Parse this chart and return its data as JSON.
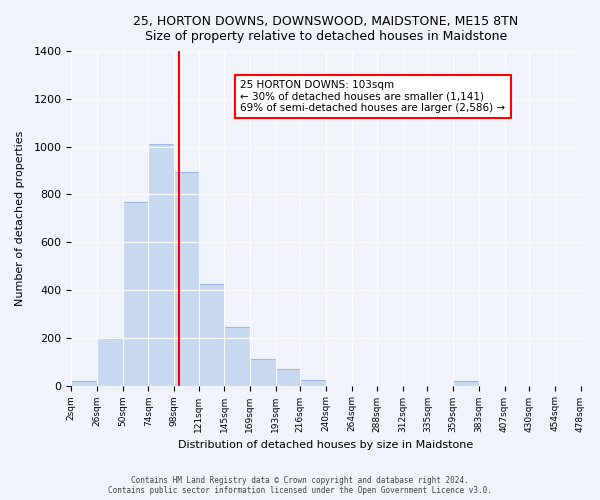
{
  "title": "25, HORTON DOWNS, DOWNSWOOD, MAIDSTONE, ME15 8TN",
  "subtitle": "Size of property relative to detached houses in Maidstone",
  "xlabel": "Distribution of detached houses by size in Maidstone",
  "ylabel": "Number of detached properties",
  "bar_color": "#c8d8f0",
  "bar_edge_color": "#a0b8e0",
  "vline_x": 103,
  "vline_color": "red",
  "annotation_title": "25 HORTON DOWNS: 103sqm",
  "annotation_line1": "← 30% of detached houses are smaller (1,141)",
  "annotation_line2": "69% of semi-detached houses are larger (2,586) →",
  "annotation_box_color": "white",
  "annotation_box_edge": "red",
  "bin_edges": [
    2,
    26,
    50,
    74,
    98,
    121,
    145,
    169,
    193,
    216,
    240,
    264,
    288,
    312,
    335,
    359,
    383,
    407,
    430,
    454,
    478
  ],
  "bin_counts": [
    20,
    200,
    770,
    1010,
    895,
    425,
    245,
    110,
    70,
    25,
    0,
    0,
    0,
    0,
    0,
    20,
    0,
    0,
    0,
    0
  ],
  "tick_labels": [
    "2sqm",
    "26sqm",
    "50sqm",
    "74sqm",
    "98sqm",
    "121sqm",
    "145sqm",
    "169sqm",
    "193sqm",
    "216sqm",
    "240sqm",
    "264sqm",
    "288sqm",
    "312sqm",
    "335sqm",
    "359sqm",
    "383sqm",
    "407sqm",
    "430sqm",
    "454sqm",
    "478sqm"
  ],
  "ylim": [
    0,
    1400
  ],
  "yticks": [
    0,
    200,
    400,
    600,
    800,
    1000,
    1200,
    1400
  ],
  "footnote1": "Contains HM Land Registry data © Crown copyright and database right 2024.",
  "footnote2": "Contains public sector information licensed under the Open Government Licence v3.0.",
  "background_color": "#f0f4fa"
}
